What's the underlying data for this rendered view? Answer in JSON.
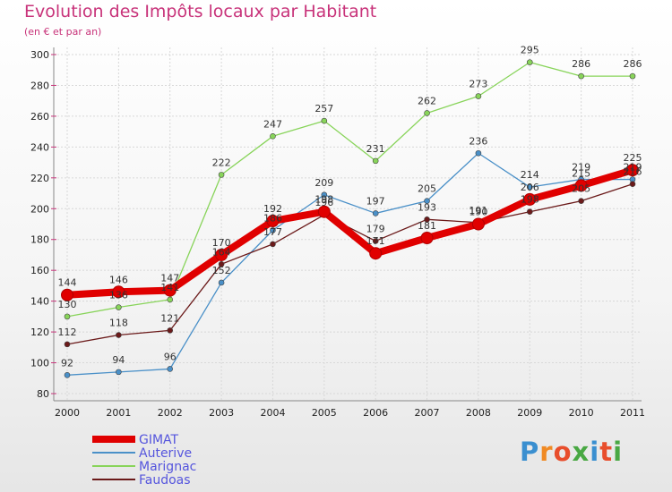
{
  "title": "Evolution des Impôts locaux par Habitant",
  "subtitle": "(en € et par an)",
  "logo": {
    "text": "Proxiti",
    "letters": [
      "P",
      "r",
      "o",
      "x",
      "i",
      "t",
      "i"
    ],
    "colors": [
      "#3a8fd0",
      "#f08a24",
      "#e84e2c",
      "#49a843",
      "#3a8fd0",
      "#e84e2c",
      "#49a843"
    ]
  },
  "chart_data": {
    "type": "line",
    "title": "Evolution des Impôts locaux par Habitant",
    "ylabel": "(en € et par an)",
    "xlabel": "",
    "x": [
      "2000",
      "2001",
      "2002",
      "2003",
      "2004",
      "2005",
      "2006",
      "2007",
      "2008",
      "2009",
      "2010",
      "2011"
    ],
    "ylim": [
      80,
      300
    ],
    "yticks": [
      "80",
      "100",
      "120",
      "140",
      "160",
      "180",
      "200",
      "220",
      "240",
      "260",
      "280",
      "300"
    ],
    "grid": true,
    "legend_position": "bottom-left",
    "series": [
      {
        "name": "GIMAT",
        "color": "#e00000",
        "bold": true,
        "values": [
          144,
          146,
          147,
          170,
          192,
          198,
          171,
          181,
          190,
          206,
          215,
          225
        ],
        "labels": [
          "144",
          "146",
          "147",
          "170",
          "192",
          "198",
          "171",
          "181",
          "190",
          "206",
          "215",
          "225"
        ]
      },
      {
        "name": "Auterive",
        "color": "#4a90c8",
        "bold": false,
        "values": [
          92,
          94,
          96,
          152,
          186,
          209,
          197,
          205,
          236,
          214,
          219,
          219
        ],
        "labels": [
          "92",
          "94",
          "96",
          "152",
          "186",
          "209",
          "197",
          "205",
          "236",
          "214",
          "219",
          "219"
        ]
      },
      {
        "name": "Marignac",
        "color": "#88d45a",
        "bold": false,
        "values": [
          130,
          136,
          141,
          222,
          247,
          257,
          231,
          262,
          273,
          295,
          286,
          286
        ],
        "labels": [
          "130",
          "136",
          "141",
          "222",
          "247",
          "257",
          "231",
          "262",
          "273",
          "295",
          "286",
          "286"
        ]
      },
      {
        "name": "Faudoas",
        "color": "#6b1a1a",
        "bold": false,
        "values": [
          112,
          118,
          121,
          164,
          177,
          196,
          179,
          193,
          191,
          198,
          205,
          216
        ],
        "labels": [
          "112",
          "118",
          "121",
          "164",
          "177",
          "196",
          "179",
          "193",
          "191",
          "198",
          "205",
          "216"
        ]
      }
    ]
  }
}
